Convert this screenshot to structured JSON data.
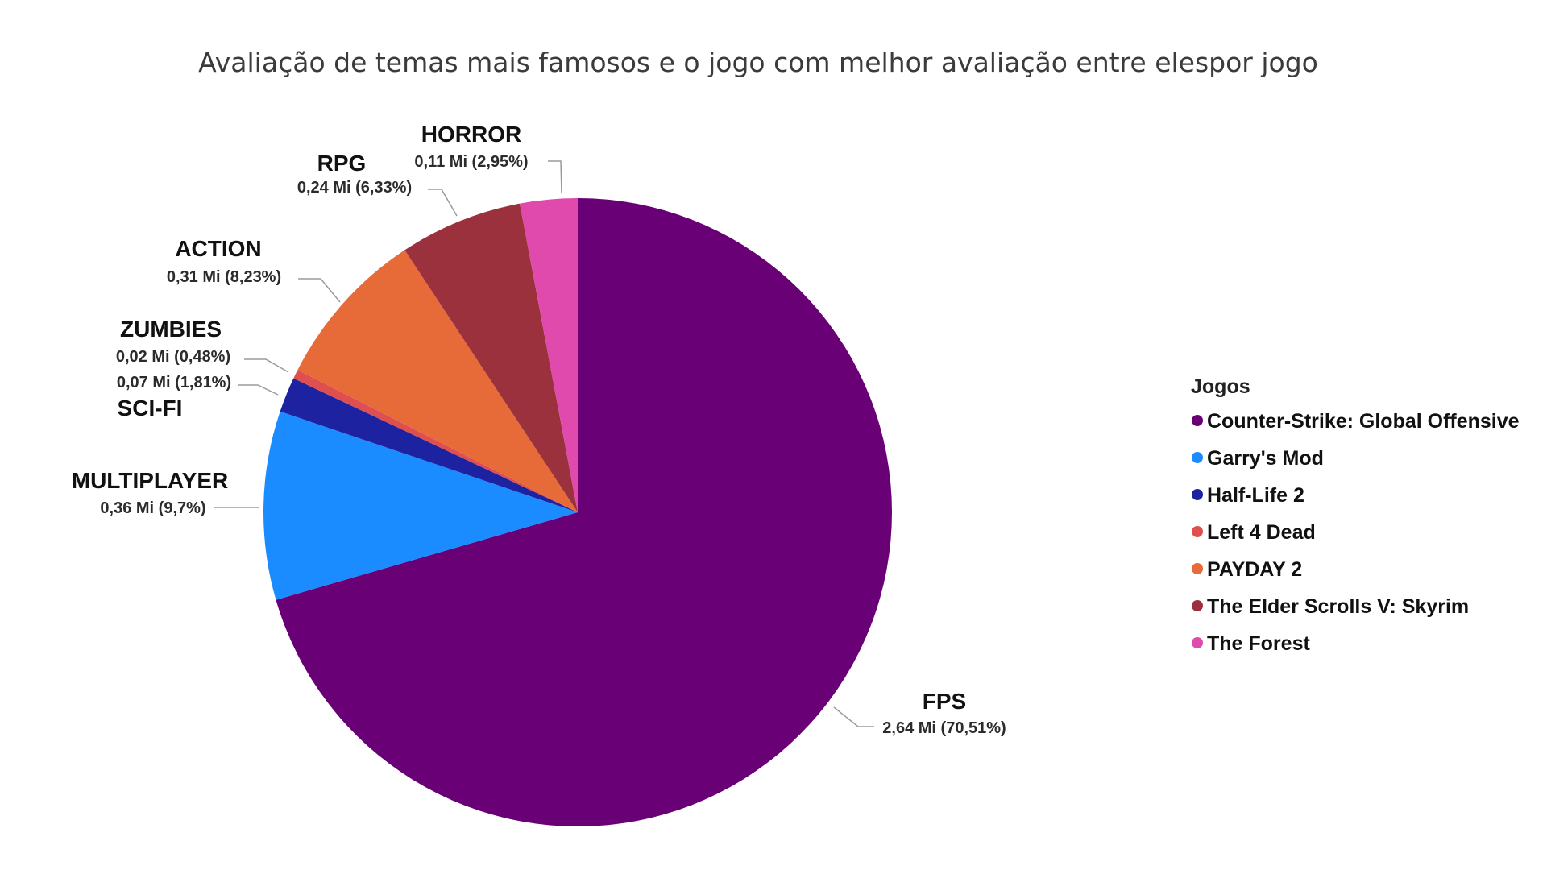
{
  "chart_data": {
    "type": "pie",
    "title": "Avaliação de temas mais famosos e o jogo com melhor avaliação entre elespor jogo",
    "legend": {
      "title": "Jogos",
      "placement": "right",
      "entries": [
        {
          "label": "Counter-Strike: Global Offensive",
          "color": "#6a0076"
        },
        {
          "label": "Garry's Mod",
          "color": "#1a8cff"
        },
        {
          "label": "Half-Life 2",
          "color": "#1d23a0"
        },
        {
          "label": "Left 4 Dead",
          "color": "#e04f4f"
        },
        {
          "label": "PAYDAY 2",
          "color": "#e76b39"
        },
        {
          "label": "The Elder Scrolls V: Skyrim",
          "color": "#9b313d"
        },
        {
          "label": "The Forest",
          "color": "#e04aad"
        }
      ]
    },
    "slices": [
      {
        "category": "FPS",
        "game": "Counter-Strike: Global Offensive",
        "value": 2.64,
        "percent": 70.51,
        "value_label": "2,64 Mi (70,51%)",
        "color": "#6a0076"
      },
      {
        "category": "MULTIPLAYER",
        "game": "Garry's Mod",
        "value": 0.36,
        "percent": 9.7,
        "value_label": "0,36 Mi (9,7%)",
        "color": "#1a8cff"
      },
      {
        "category": "SCI-FI",
        "game": "Half-Life 2",
        "value": 0.07,
        "percent": 1.81,
        "value_label": "0,07 Mi (1,81%)",
        "color": "#1d23a0"
      },
      {
        "category": "ZUMBIES",
        "game": "Left 4 Dead",
        "value": 0.02,
        "percent": 0.48,
        "value_label": "0,02 Mi (0,48%)",
        "color": "#e04f4f"
      },
      {
        "category": "ACTION",
        "game": "PAYDAY 2",
        "value": 0.31,
        "percent": 8.23,
        "value_label": "0,31 Mi (8,23%)",
        "color": "#e76b39"
      },
      {
        "category": "RPG",
        "game": "The Elder Scrolls V: Skyrim",
        "value": 0.24,
        "percent": 6.33,
        "value_label": "0,24 Mi (6,33%)",
        "color": "#9b313d"
      },
      {
        "category": "HORROR",
        "game": "The Forest",
        "value": 0.11,
        "percent": 2.95,
        "value_label": "0,11 Mi (2,95%)",
        "color": "#e04aad"
      }
    ]
  }
}
